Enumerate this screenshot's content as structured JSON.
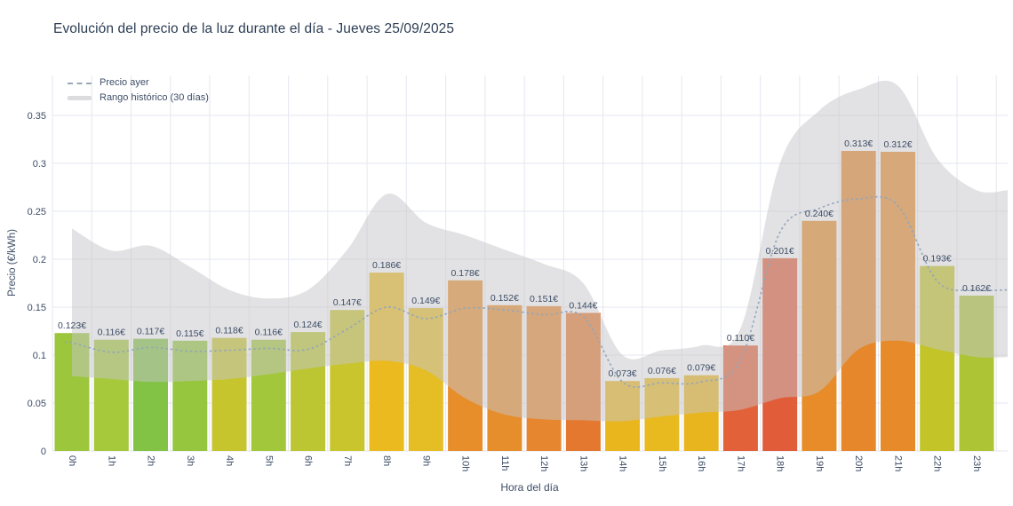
{
  "colors": {
    "background": "#ffffff",
    "title_text": "#2c3e54",
    "tick_text": "#3d4d66",
    "grid": "#e6e7f0",
    "dashed_line": "#93a5ba",
    "band_fill": "rgba(197,197,202,0.5)"
  },
  "legend": {
    "items": [
      {
        "label": "Precio ayer",
        "swatch": "dashed-line"
      },
      {
        "label": "Rango histórico (30 días)",
        "swatch": "gray-band"
      }
    ]
  },
  "chart_data": {
    "type": "bar",
    "title": "Evolución del precio de la luz durante el día - Jueves 25/09/2025",
    "xlabel": "Hora del día",
    "ylabel": "Precio (€/kWh)",
    "ylim": [
      0,
      0.35
    ],
    "grid": true,
    "legend_position": "top-left",
    "ytick_values": [
      0,
      0.05,
      0.1,
      0.15,
      0.2,
      0.25,
      0.3,
      0.35
    ],
    "ytick_labels": [
      "0",
      "0.05",
      "0.1",
      "0.15",
      "0.2",
      "0.25",
      "0.3",
      "0.35"
    ],
    "categories": [
      "0h",
      "1h",
      "2h",
      "3h",
      "4h",
      "5h",
      "6h",
      "7h",
      "8h",
      "9h",
      "10h",
      "11h",
      "12h",
      "13h",
      "14h",
      "15h",
      "16h",
      "17h",
      "18h",
      "19h",
      "20h",
      "21h",
      "22h",
      "23h"
    ],
    "series": [
      {
        "type": "bar",
        "unit": "€/kWh",
        "values": [
          0.123,
          0.116,
          0.117,
          0.115,
          0.118,
          0.116,
          0.124,
          0.147,
          0.186,
          0.149,
          0.178,
          0.152,
          0.151,
          0.144,
          0.073,
          0.076,
          0.079,
          0.11,
          0.201,
          0.24,
          0.313,
          0.312,
          0.193,
          0.162
        ],
        "labels": [
          "0.123€",
          "0.116€",
          "0.117€",
          "0.115€",
          "0.118€",
          "0.116€",
          "0.124€",
          "0.147€",
          "0.186€",
          "0.149€",
          "0.178€",
          "0.152€",
          "0.151€",
          "0.144€",
          "0.073€",
          "0.076€",
          "0.079€",
          "0.110€",
          "0.201€",
          "0.240€",
          "0.313€",
          "0.312€",
          "0.193€",
          "0.162€"
        ],
        "bar_colors": [
          "#9cc63b",
          "#a5c93a",
          "#82c244",
          "#95c63d",
          "#c6c52e",
          "#a3c73a",
          "#bbc632",
          "#c9c52c",
          "#eaba1e",
          "#e5bd24",
          "#e78e2a",
          "#e68d2c",
          "#e6862e",
          "#e4782f",
          "#eab61e",
          "#e9b920",
          "#e9b51f",
          "#e26138",
          "#e15c38",
          "#e78c29",
          "#e6872c",
          "#e78a2a",
          "#c2c428",
          "#adc434"
        ]
      },
      {
        "name": "Precio ayer",
        "type": "line",
        "style": "dashed",
        "color": "#93a5ba",
        "values": [
          0.113,
          0.103,
          0.108,
          0.104,
          0.105,
          0.107,
          0.106,
          0.127,
          0.15,
          0.138,
          0.149,
          0.147,
          0.142,
          0.14,
          0.072,
          0.071,
          0.072,
          0.095,
          0.228,
          0.253,
          0.263,
          0.256,
          0.177,
          0.168
        ]
      },
      {
        "name": "Rango histórico (30 días)",
        "type": "band",
        "color": "rgba(197,197,202,0.5)",
        "upper": [
          0.232,
          0.209,
          0.214,
          0.192,
          0.168,
          0.159,
          0.168,
          0.21,
          0.268,
          0.238,
          0.225,
          0.21,
          0.195,
          0.175,
          0.1,
          0.105,
          0.11,
          0.128,
          0.3,
          0.355,
          0.377,
          0.381,
          0.305,
          0.272
        ],
        "lower": [
          0.078,
          0.075,
          0.072,
          0.073,
          0.075,
          0.08,
          0.086,
          0.091,
          0.094,
          0.084,
          0.055,
          0.038,
          0.033,
          0.032,
          0.031,
          0.036,
          0.04,
          0.043,
          0.055,
          0.062,
          0.106,
          0.115,
          0.106,
          0.098
        ]
      }
    ]
  }
}
